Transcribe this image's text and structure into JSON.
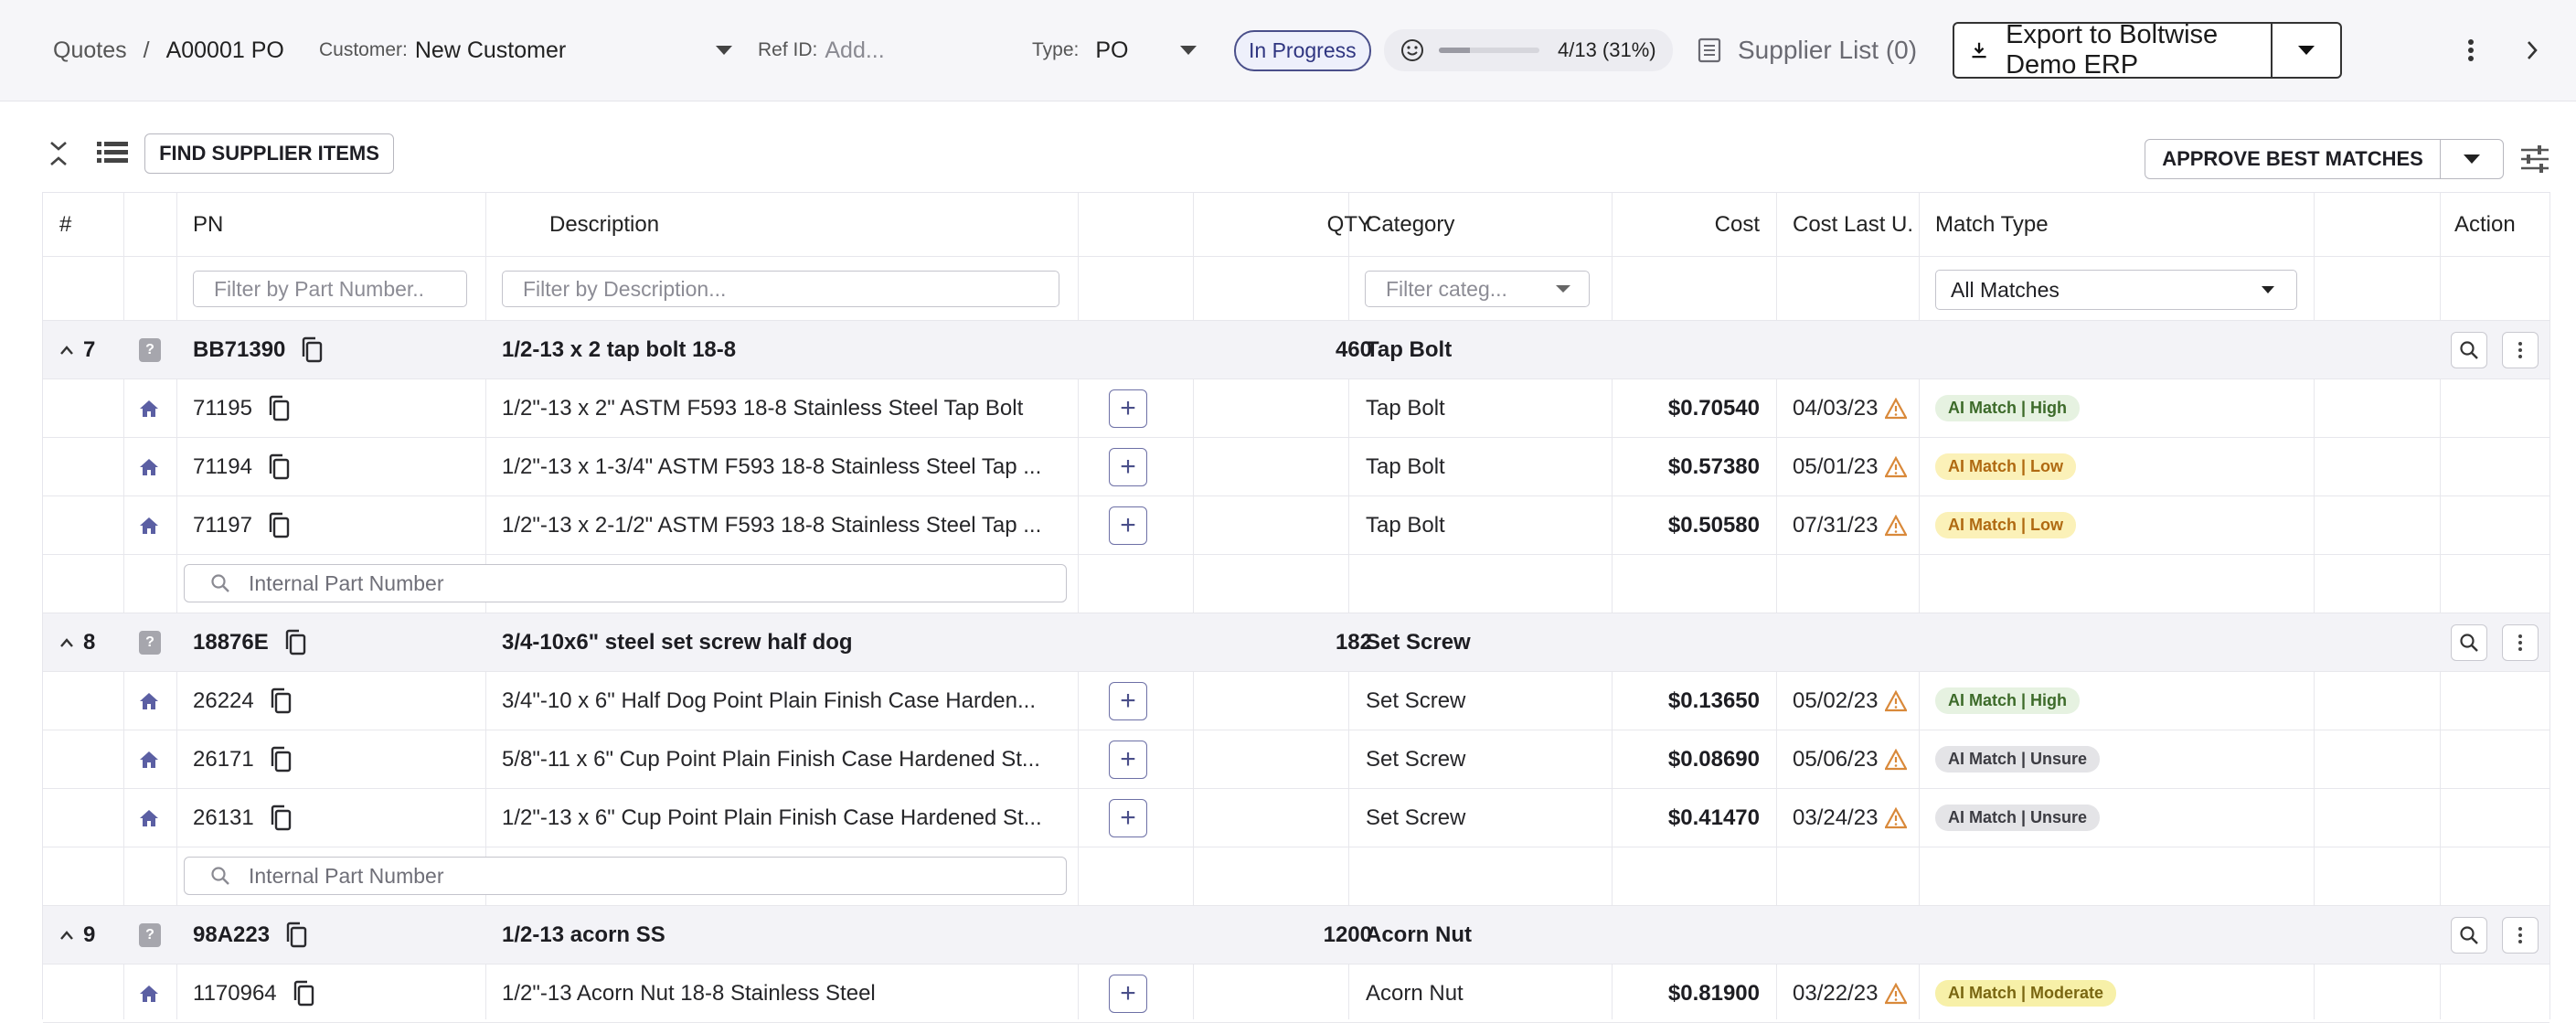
{
  "header": {
    "breadcrumb_root": "Quotes",
    "breadcrumb_sep": "/",
    "breadcrumb_current": "A00001 PO",
    "customer_label": "Customer:",
    "customer_value": "New Customer",
    "refid_label": "Ref ID:",
    "refid_placeholder": "Add...",
    "type_label": "Type:",
    "type_value": "PO",
    "status": "In Progress",
    "progress_text": "4/13 (31%)",
    "progress_fraction": 0.31,
    "supplier_list": "Supplier List (0)",
    "export_label": "Export to Boltwise Demo ERP"
  },
  "toolbar": {
    "find_supplier_items": "FIND SUPPLIER ITEMS",
    "approve_best_matches": "APPROVE BEST MATCHES"
  },
  "table": {
    "columns": {
      "num": "#",
      "pn": "PN",
      "description": "Description",
      "qty": "QTY",
      "category": "Category",
      "cost": "Cost",
      "cost_last": "Cost Last U.",
      "match_type": "Match Type",
      "action": "Action"
    },
    "filters": {
      "pn_placeholder": "Filter by Part Number..",
      "description_placeholder": "Filter by Description...",
      "category_placeholder": "Filter categ...",
      "match_value": "All Matches"
    },
    "search_placeholder": "Internal Part Number",
    "groups": [
      {
        "num": "7",
        "pn": "BB71390",
        "description": "1/2-13 x 2 tap bolt 18-8",
        "qty": "460",
        "category": "Tap Bolt",
        "items": [
          {
            "pn": "71195",
            "description": "1/2\"-13 x 2\" ASTM F593 18-8 Stainless Steel Tap Bolt",
            "category": "Tap Bolt",
            "cost": "$0.70540",
            "date": "04/03/23",
            "match": "AI Match | High"
          },
          {
            "pn": "71194",
            "description": "1/2\"-13 x 1-3/4\" ASTM F593 18-8 Stainless Steel Tap ...",
            "category": "Tap Bolt",
            "cost": "$0.57380",
            "date": "05/01/23",
            "match": "AI Match | Low"
          },
          {
            "pn": "71197",
            "description": "1/2\"-13 x 2-1/2\" ASTM F593 18-8 Stainless Steel Tap ...",
            "category": "Tap Bolt",
            "cost": "$0.50580",
            "date": "07/31/23",
            "match": "AI Match | Low"
          }
        ]
      },
      {
        "num": "8",
        "pn": "18876E",
        "description": "3/4-10x6\" steel set screw half dog",
        "qty": "182",
        "category": "Set Screw",
        "items": [
          {
            "pn": "26224",
            "description": "3/4\"-10 x 6\" Half Dog Point Plain Finish Case Harden...",
            "category": "Set Screw",
            "cost": "$0.13650",
            "date": "05/02/23",
            "match": "AI Match | High"
          },
          {
            "pn": "26171",
            "description": "5/8\"-11 x 6\" Cup Point Plain Finish Case Hardened St...",
            "category": "Set Screw",
            "cost": "$0.08690",
            "date": "05/06/23",
            "match": "AI Match | Unsure"
          },
          {
            "pn": "26131",
            "description": "1/2\"-13 x 6\" Cup Point Plain Finish Case Hardened St...",
            "category": "Set Screw",
            "cost": "$0.41470",
            "date": "03/24/23",
            "match": "AI Match | Unsure"
          }
        ]
      },
      {
        "num": "9",
        "pn": "98A223",
        "description": "1/2-13 acorn SS",
        "qty": "1200",
        "category": "Acorn Nut",
        "items": [
          {
            "pn": "1170964",
            "description": "1/2\"-13 Acorn Nut 18-8 Stainless Steel",
            "category": "Acorn Nut",
            "cost": "$0.81900",
            "date": "03/22/23",
            "match": "AI Match | Moderate"
          }
        ]
      }
    ]
  },
  "colors": {
    "accent": "#4a4f8a",
    "match_high": "#e6f2e1",
    "match_low": "#fbf1b8",
    "match_unsure": "#e4e4e7",
    "match_moderate": "#f7f0a8",
    "warning": "#d9893a"
  }
}
